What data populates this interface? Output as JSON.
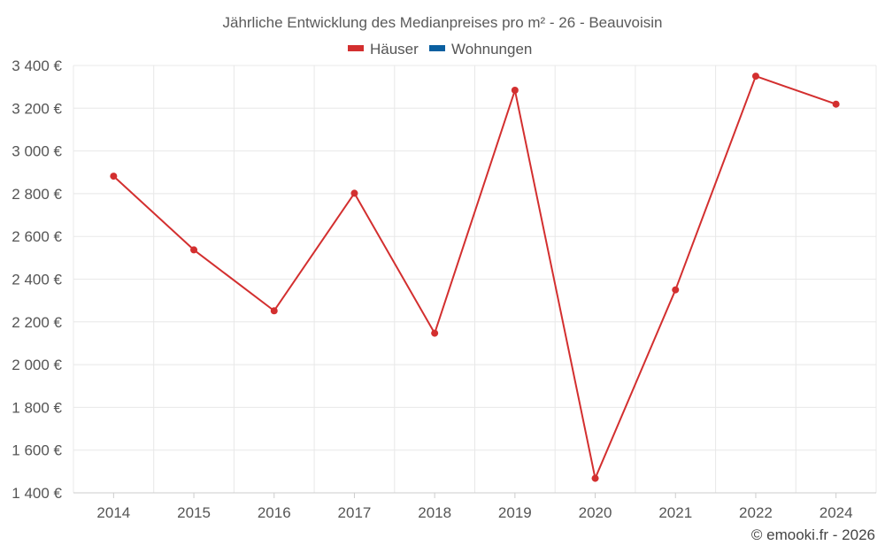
{
  "chart_data": {
    "type": "line",
    "title": "Jährliche Entwicklung des Medianpreises pro m² - 26 - Beauvoisin",
    "legend": [
      {
        "name": "Häuser",
        "color": "#d32f2f"
      },
      {
        "name": "Wohnungen",
        "color": "#0a5fa0"
      }
    ],
    "legend_position": "top-center",
    "x": [
      "2014",
      "2015",
      "2016",
      "2017",
      "2018",
      "2019",
      "2020",
      "2021",
      "2022",
      "2024"
    ],
    "series": [
      {
        "name": "Häuser",
        "color": "#d32f2f",
        "values": [
          2882,
          2537,
          2252,
          2802,
          2147,
          3284,
          1468,
          2350,
          3350,
          3219
        ]
      }
    ],
    "ylim": [
      1400,
      3400
    ],
    "yticks": [
      1400,
      1600,
      1800,
      2000,
      2200,
      2400,
      2600,
      2800,
      3000,
      3200,
      3400
    ],
    "ytick_labels": [
      "1 400 €",
      "1 600 €",
      "1 800 €",
      "2 000 €",
      "2 200 €",
      "2 400 €",
      "2 600 €",
      "2 800 €",
      "3 000 €",
      "3 200 €",
      "3 400 €"
    ],
    "grid": true,
    "credit": "© emooki.fr - 2026"
  }
}
